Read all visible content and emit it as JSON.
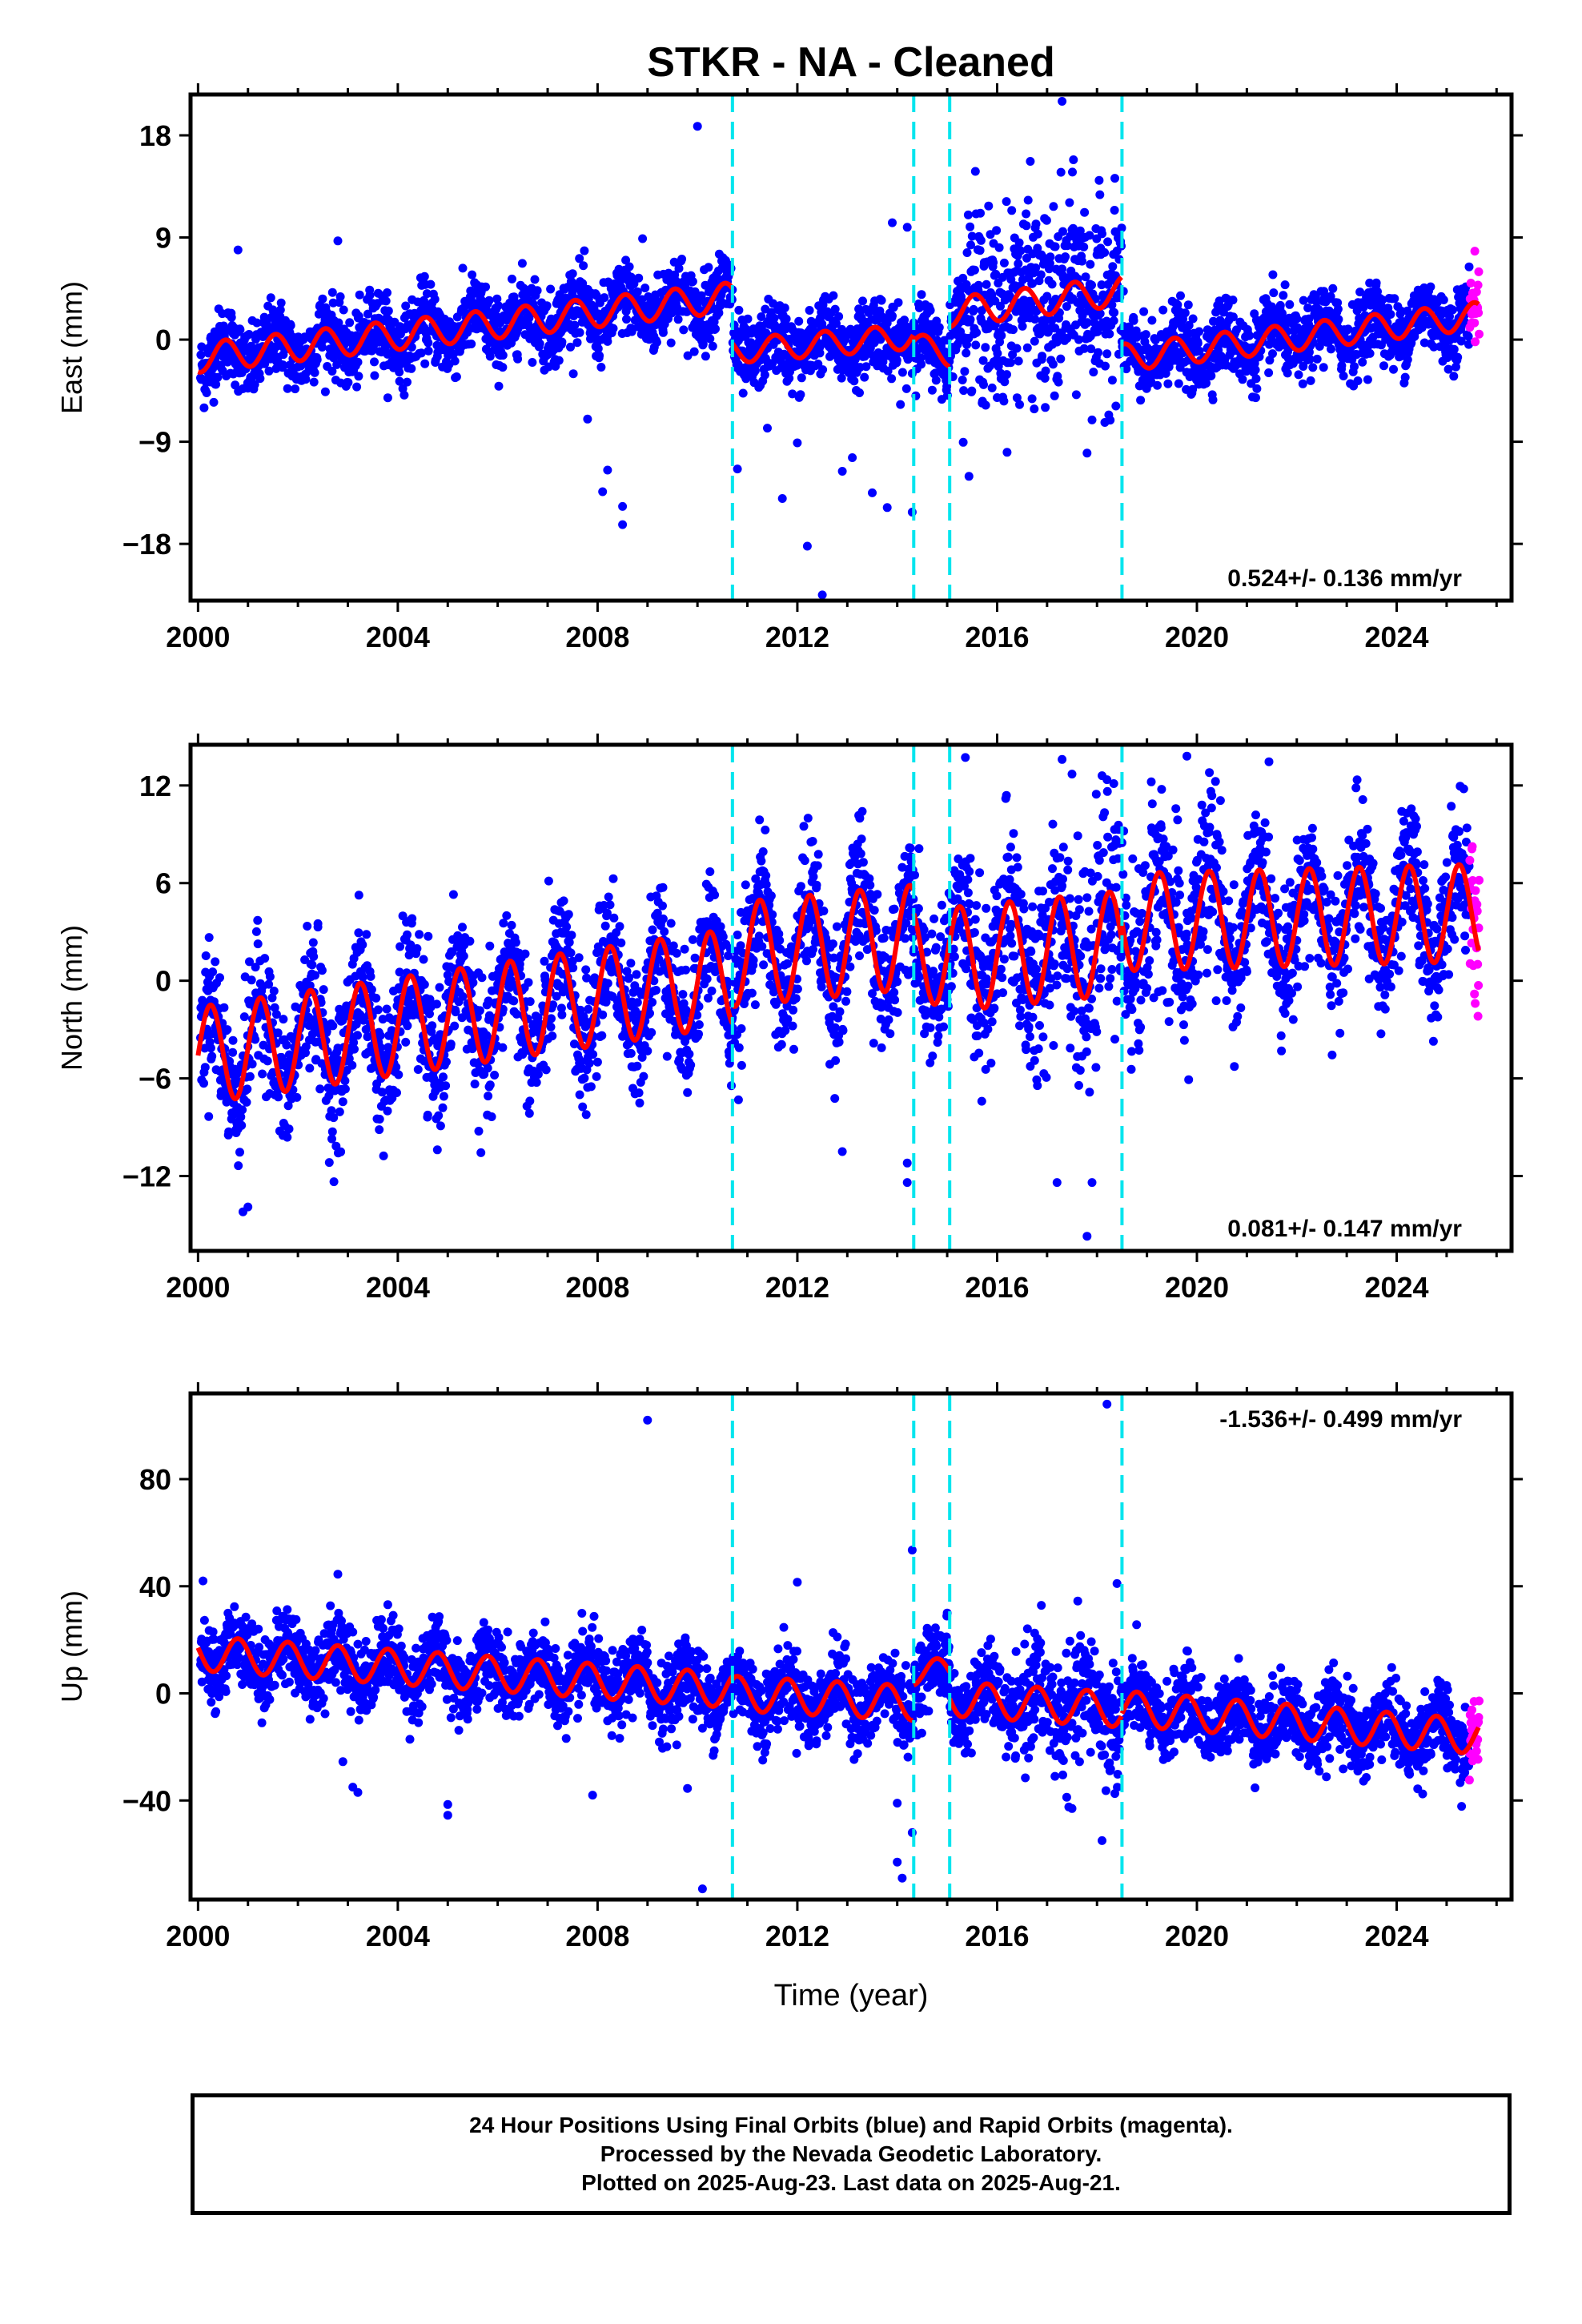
{
  "title": "STKR  - NA - Cleaned",
  "colors": {
    "final_orbits": "#0000ff",
    "rapid_orbits": "#ff00ff",
    "model": "#ff0000",
    "offsets": "#00e5ee"
  },
  "chart_data": [
    {
      "type": "scatter",
      "component": "East",
      "ylabel": "East (mm)",
      "xlabel": "",
      "xlim": [
        1999.85,
        2026.3
      ],
      "ylim": [
        -23.0,
        21.6
      ],
      "xticks": [
        2000,
        2004,
        2008,
        2012,
        2016,
        2020,
        2024
      ],
      "yticks": [
        -18,
        -9,
        0,
        9,
        18
      ],
      "ytick_labels": [
        "−18",
        "−9",
        "0",
        "9",
        "18"
      ],
      "offsets": [
        2010.7,
        2014.33,
        2015.05,
        2018.5
      ],
      "rate_label": "0.524+/- 0.136 mm/yr",
      "segments": [
        {
          "start": 2000.0,
          "end": 2010.7,
          "a": -1.6,
          "b": 0.5,
          "amp": 1.3,
          "phase": 0.3
        },
        {
          "start": 2010.7,
          "end": 2014.33,
          "a": -1.0,
          "b": 0.35,
          "amp": 1.1,
          "phase": 0.3
        },
        {
          "start": 2014.33,
          "end": 2015.05,
          "a": -0.3,
          "b": -1.5,
          "amp": 1.0,
          "phase": 0.3
        },
        {
          "start": 2015.05,
          "end": 2018.5,
          "a": 2.4,
          "b": 0.55,
          "amp": 1.3,
          "phase": 0.3
        },
        {
          "start": 2018.5,
          "end": 2025.65,
          "a": -1.6,
          "b": 0.52,
          "amp": 1.2,
          "phase": 0.3
        }
      ],
      "noise_sd": 1.6,
      "outliers": [
        [
          2010.0,
          18.8
        ],
        [
          2008.9,
          8.9
        ],
        [
          2002.8,
          8.7
        ],
        [
          2000.8,
          7.9
        ],
        [
          2013.9,
          10.3
        ],
        [
          2014.2,
          9.9
        ],
        [
          2017.3,
          21.0
        ],
        [
          2008.1,
          -13.4
        ],
        [
          2008.2,
          -11.5
        ],
        [
          2008.5,
          -14.7
        ],
        [
          2008.5,
          -16.3
        ],
        [
          2007.8,
          -7.0
        ],
        [
          2012.2,
          -18.2
        ],
        [
          2012.5,
          -22.5
        ],
        [
          2013.5,
          -13.5
        ],
        [
          2014.3,
          -15.2
        ],
        [
          2010.8,
          -11.4
        ],
        [
          2011.7,
          -14.0
        ],
        [
          2012.9,
          -11.6
        ],
        [
          2017.8,
          -10.0
        ],
        [
          2013.8,
          -14.8
        ],
        [
          2012.0,
          -9.1
        ],
        [
          2013.1,
          -10.4
        ],
        [
          2011.4,
          -7.8
        ]
      ]
    },
    {
      "type": "scatter",
      "component": "North",
      "ylabel": "North (mm)",
      "xlabel": "",
      "xlim": [
        1999.85,
        2026.3
      ],
      "ylim": [
        -16.6,
        14.5
      ],
      "xticks": [
        2000,
        2004,
        2008,
        2012,
        2016,
        2020,
        2024
      ],
      "yticks": [
        -12,
        -6,
        0,
        6,
        12
      ],
      "ytick_labels": [
        "−12",
        "−6",
        "0",
        "6",
        "12"
      ],
      "offsets": [
        2010.7,
        2014.33,
        2015.05,
        2018.5
      ],
      "rate_label": "0.081+/- 0.147 mm/yr",
      "segments": [
        {
          "start": 2000.0,
          "end": 2010.7,
          "a": -4.6,
          "b": 0.45,
          "amp": 3.0,
          "phase": 0.0
        },
        {
          "start": 2010.7,
          "end": 2014.33,
          "a": 1.6,
          "b": 0.3,
          "amp": 3.2,
          "phase": 0.0
        },
        {
          "start": 2014.33,
          "end": 2015.05,
          "a": 1.5,
          "b": 0.1,
          "amp": 3.0,
          "phase": 0.0
        },
        {
          "start": 2015.05,
          "end": 2018.5,
          "a": 1.3,
          "b": 0.3,
          "amp": 3.2,
          "phase": 0.0
        },
        {
          "start": 2018.5,
          "end": 2025.65,
          "a": 3.6,
          "b": 0.08,
          "amp": 3.0,
          "phase": 0.0
        }
      ],
      "noise_sd": 2.0,
      "outliers": [
        [
          2001.0,
          -13.9
        ],
        [
          2000.9,
          -14.2
        ],
        [
          2002.4,
          3.3
        ],
        [
          2012.9,
          -10.5
        ],
        [
          2013.3,
          10.4
        ],
        [
          2014.2,
          -11.2
        ],
        [
          2014.2,
          -12.4
        ],
        [
          2017.3,
          13.6
        ],
        [
          2017.5,
          12.7
        ],
        [
          2017.2,
          -12.4
        ],
        [
          2017.9,
          -12.4
        ],
        [
          2017.8,
          -15.7
        ],
        [
          2019.8,
          13.8
        ],
        [
          2018.1,
          12.6
        ]
      ]
    },
    {
      "type": "scatter",
      "component": "Up",
      "ylabel": "Up (mm)",
      "xlabel": "Time (year)",
      "xlim": [
        1999.85,
        2026.3
      ],
      "ylim": [
        -77,
        112
      ],
      "xticks": [
        2000,
        2004,
        2008,
        2012,
        2016,
        2020,
        2024
      ],
      "yticks": [
        -40,
        0,
        40,
        80
      ],
      "ytick_labels": [
        "−40",
        "0",
        "40",
        "80"
      ],
      "offsets": [
        2010.7,
        2014.33,
        2015.05,
        2018.5
      ],
      "rate_label": "-1.536+/- 0.499 mm/yr",
      "segments": [
        {
          "start": 2000.0,
          "end": 2010.7,
          "a": 15.0,
          "b": -1.3,
          "amp": 6.5,
          "phase": 0.55
        },
        {
          "start": 2010.7,
          "end": 2014.33,
          "a": 0.0,
          "b": -1.0,
          "amp": 6.5,
          "phase": 0.55
        },
        {
          "start": 2014.33,
          "end": 2015.05,
          "a": 8.0,
          "b": 0.0,
          "amp": 5.0,
          "phase": 0.55
        },
        {
          "start": 2015.05,
          "end": 2018.5,
          "a": -2.0,
          "b": -1.2,
          "amp": 6.5,
          "phase": 0.55
        },
        {
          "start": 2018.5,
          "end": 2025.65,
          "a": -5.5,
          "b": -1.5,
          "amp": 6.5,
          "phase": 0.55
        }
      ],
      "noise_sd": 7.0,
      "outliers": [
        [
          2009.0,
          102.0
        ],
        [
          2018.2,
          108.0
        ],
        [
          2014.3,
          53.5
        ],
        [
          2018.4,
          41.0
        ],
        [
          2012.0,
          41.5
        ],
        [
          2002.8,
          44.5
        ],
        [
          2000.1,
          42.0
        ],
        [
          2002.9,
          -25.5
        ],
        [
          2003.1,
          -35.0
        ],
        [
          2003.2,
          -37.0
        ],
        [
          2005.0,
          -41.5
        ],
        [
          2005.0,
          -45.5
        ],
        [
          2007.9,
          -38.0
        ],
        [
          2010.1,
          -73.0
        ],
        [
          2009.8,
          -35.5
        ],
        [
          2014.0,
          -63.0
        ],
        [
          2014.1,
          -69.0
        ],
        [
          2014.3,
          -52.0
        ],
        [
          2014.0,
          -41.0
        ],
        [
          2018.1,
          -55.0
        ],
        [
          2015.0,
          30.0
        ],
        [
          2017.5,
          -43.0
        ]
      ]
    }
  ],
  "footer": {
    "line1": "24 Hour Positions Using Final Orbits (blue) and Rapid Orbits (magenta).",
    "line2": "Processed by the Nevada Geodetic Laboratory.",
    "line3": "Plotted on 2025-Aug-23. Last data on 2025-Aug-21."
  }
}
